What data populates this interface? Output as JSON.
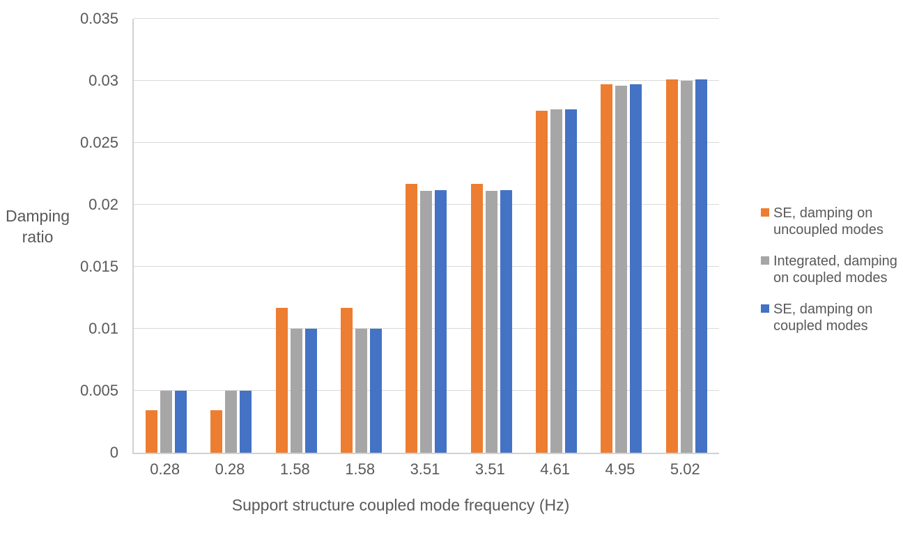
{
  "page": {
    "background": "#FFFFFF",
    "text_color": "#595959",
    "gridline_color": "#D9D9D9",
    "axis_line_color": "#D2D0D0"
  },
  "y_axis": {
    "title_lines": [
      "Damping",
      "ratio"
    ],
    "ticks": [
      {
        "label": "0",
        "value": 0
      },
      {
        "label": "0.005",
        "value": 0.005
      },
      {
        "label": "0.01",
        "value": 0.01
      },
      {
        "label": "0.015",
        "value": 0.015
      },
      {
        "label": "0.02",
        "value": 0.02
      },
      {
        "label": "0.025",
        "value": 0.025
      },
      {
        "label": "0.03",
        "value": 0.03
      },
      {
        "label": "0.035",
        "value": 0.035
      }
    ]
  },
  "legend": {
    "position": "right",
    "items": [
      {
        "line1": "SE, damping on",
        "line2": "uncoupled modes",
        "color": "#ED7D31"
      },
      {
        "line1": "Integrated, damping",
        "line2": "on coupled modes",
        "color": "#A6A6A6"
      },
      {
        "line1": "SE, damping on",
        "line2": "coupled modes",
        "color": "#4472C4"
      }
    ]
  },
  "chart_data": {
    "type": "bar",
    "title": "",
    "xlabel": "Support structure coupled mode frequency (Hz)",
    "ylabel": "Damping ratio",
    "categories": [
      "0.28",
      "0.28",
      "1.58",
      "1.58",
      "3.51",
      "3.51",
      "4.61",
      "4.95",
      "5.02"
    ],
    "series": [
      {
        "name": "SE, damping on uncoupled modes",
        "color": "#ED7D31",
        "values": [
          0.0034,
          0.0034,
          0.0117,
          0.0117,
          0.0217,
          0.0217,
          0.0276,
          0.0297,
          0.0301
        ]
      },
      {
        "name": "Integrated, damping on coupled modes",
        "color": "#A6A6A6",
        "values": [
          0.005,
          0.005,
          0.01,
          0.01,
          0.0211,
          0.0211,
          0.0277,
          0.0296,
          0.03
        ]
      },
      {
        "name": "SE, damping on coupled modes",
        "color": "#4472C4",
        "values": [
          0.005,
          0.005,
          0.01,
          0.01,
          0.0212,
          0.0212,
          0.0277,
          0.0297,
          0.0301
        ]
      }
    ],
    "ylim": [
      0,
      0.035
    ],
    "ytick_step": 0.005,
    "grid": true,
    "legend_position": "right"
  }
}
